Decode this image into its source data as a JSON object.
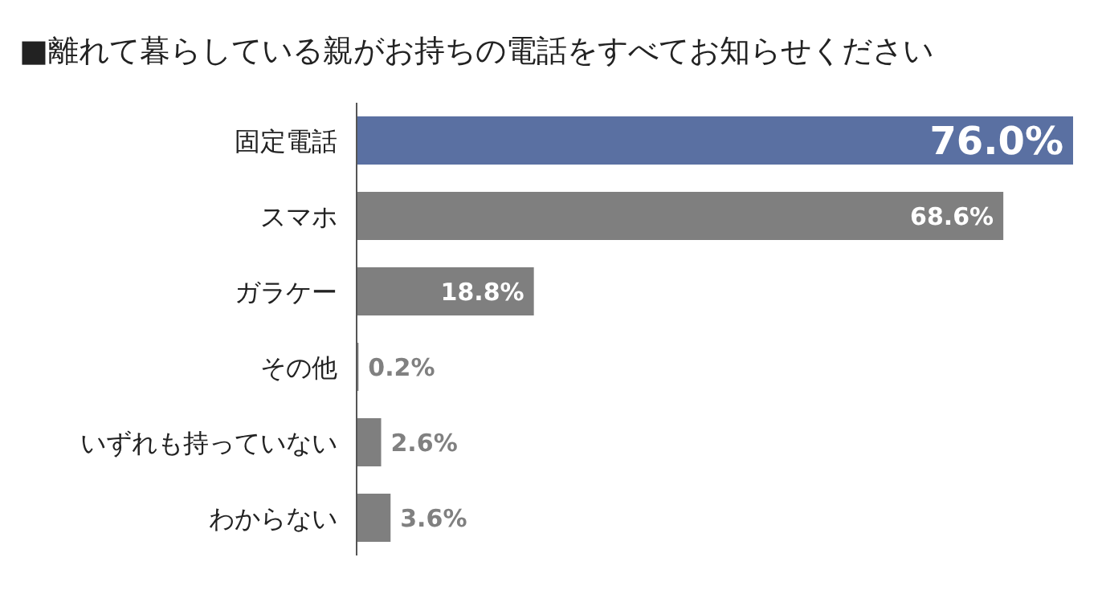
{
  "chart_data": {
    "type": "bar",
    "orientation": "horizontal",
    "title": "■離れて暮らしている親がお持ちの電話をすべてお知らせください",
    "categories": [
      "固定電話",
      "スマホ",
      "ガラケー",
      "その他",
      "いずれも持っていない",
      "わからない"
    ],
    "values": [
      76.0,
      68.6,
      18.8,
      0.2,
      2.6,
      3.6
    ],
    "colors": [
      "#5a70a2",
      "#7f7f7f",
      "#7f7f7f",
      "#7f7f7f",
      "#7f7f7f",
      "#7f7f7f"
    ],
    "value_labels": [
      "76.0%",
      "68.6%",
      "18.8%",
      "0.2%",
      "2.6%",
      "3.6%"
    ]
  }
}
